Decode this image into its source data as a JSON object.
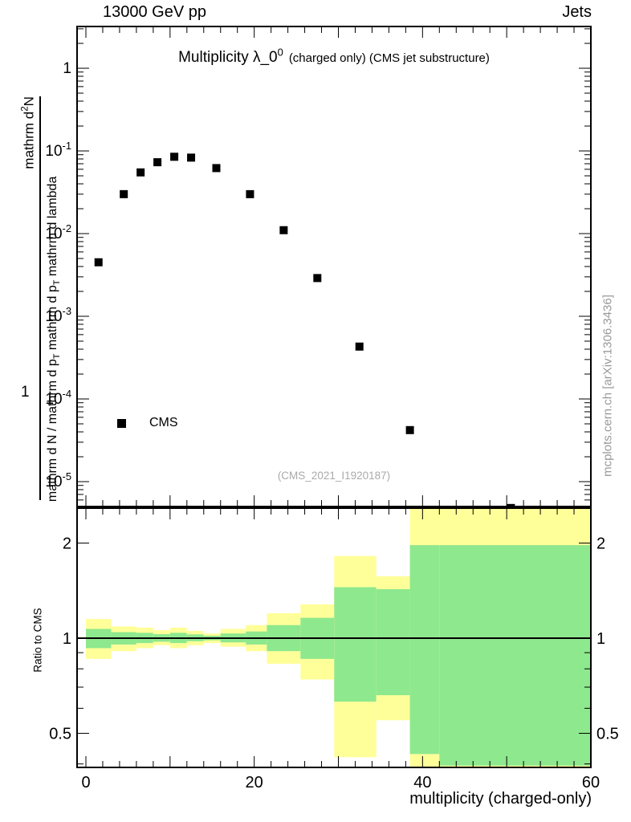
{
  "header": {
    "left": "13000 GeV pp",
    "right": "Jets"
  },
  "title": {
    "main": "Multiplicity λ_0^{0}",
    "suffix": "(charged only) (CMS jet substructure)"
  },
  "watermark": "(CMS_2021_I1920187)",
  "side_note": "mcplots.cern.ch [arXiv:1306.3436]",
  "xlabel": "multiplicity (charged-only)",
  "ylabel": {
    "numerator": "mathrm d^{2}N",
    "fraction_prefix": "1",
    "denominator": "mathrm d N / mathrm d p_{T} mathrm d p_{T} mathrm d lambda"
  },
  "ratio_ylabel": "Ratio to CMS",
  "legend": {
    "items": [
      {
        "label": "CMS",
        "marker": "black-filled-square"
      }
    ]
  },
  "chart_data": [
    {
      "type": "scatter",
      "panel": "main",
      "title": "Multiplicity λ_0^0 (charged only) (CMS jet substructure)",
      "x_range": [
        -1.05,
        60
      ],
      "y_scale": "log",
      "y_range": [
        5e-06,
        3.2
      ],
      "x_major_ticks": [
        0,
        20,
        40,
        60
      ],
      "x_major_tick_labels": [
        "0",
        "20",
        "40",
        "60"
      ],
      "x_minor_step": 2,
      "x_mid_step": 10,
      "y_tick_values": [
        1,
        0.1,
        0.01,
        0.001,
        0.0001,
        1e-05
      ],
      "y_tick_labels": [
        "1",
        "10^{-1}",
        "10^{-2}",
        "10^{-3}",
        "10^{-4}",
        "10^{-5}"
      ],
      "series": [
        {
          "name": "CMS",
          "marker": "filled-square",
          "color": "#000000",
          "x": [
            1.5,
            4.5,
            6.5,
            8.5,
            10.5,
            12.5,
            15.5,
            19.5,
            23.5,
            27.5,
            32.5,
            38.5,
            50.5
          ],
          "y": [
            0.0045,
            0.03,
            0.055,
            0.073,
            0.085,
            0.083,
            0.062,
            0.03,
            0.011,
            0.0029,
            0.00043,
            4.2e-05,
            4.8e-06
          ]
        }
      ]
    },
    {
      "type": "ratio-bands",
      "panel": "ratio",
      "ylabel": "Ratio to CMS",
      "y_scale": "log",
      "y_range": [
        0.39,
        2.58
      ],
      "y_tick_values": [
        2,
        1,
        0.5
      ],
      "y_tick_labels": [
        "2",
        "1",
        "0.5"
      ],
      "y_minor_ticks": [
        0.4,
        0.6,
        0.7,
        0.8,
        0.9
      ],
      "reference_line": 1.0,
      "band_colors": {
        "outer": "#ffff99",
        "inner": "#8ee88e"
      },
      "bands": [
        {
          "x0": 0,
          "x1": 3,
          "outer": [
            0.86,
            1.15
          ],
          "inner": [
            0.93,
            1.07
          ]
        },
        {
          "x0": 3,
          "x1": 6,
          "outer": [
            0.91,
            1.09
          ],
          "inner": [
            0.955,
            1.045
          ]
        },
        {
          "x0": 6,
          "x1": 8,
          "outer": [
            0.93,
            1.08
          ],
          "inner": [
            0.965,
            1.04
          ]
        },
        {
          "x0": 8,
          "x1": 10,
          "outer": [
            0.95,
            1.06
          ],
          "inner": [
            0.975,
            1.03
          ]
        },
        {
          "x0": 10,
          "x1": 12,
          "outer": [
            0.93,
            1.08
          ],
          "inner": [
            0.965,
            1.04
          ]
        },
        {
          "x0": 12,
          "x1": 14,
          "outer": [
            0.95,
            1.055
          ],
          "inner": [
            0.978,
            1.028
          ]
        },
        {
          "x0": 14,
          "x1": 16,
          "outer": [
            0.965,
            1.035
          ],
          "inner": [
            0.985,
            1.018
          ]
        },
        {
          "x0": 16,
          "x1": 19,
          "outer": [
            0.94,
            1.07
          ],
          "inner": [
            0.97,
            1.035
          ]
        },
        {
          "x0": 19,
          "x1": 21.5,
          "outer": [
            0.91,
            1.1
          ],
          "inner": [
            0.955,
            1.05
          ]
        },
        {
          "x0": 21.5,
          "x1": 25.5,
          "outer": [
            0.83,
            1.2
          ],
          "inner": [
            0.91,
            1.1
          ]
        },
        {
          "x0": 25.5,
          "x1": 29.5,
          "outer": [
            0.74,
            1.28
          ],
          "inner": [
            0.86,
            1.16
          ]
        },
        {
          "x0": 29.5,
          "x1": 34.5,
          "outer": [
            0.42,
            1.82
          ],
          "inner": [
            0.63,
            1.45
          ]
        },
        {
          "x0": 34.5,
          "x1": 38.5,
          "outer": [
            0.55,
            1.57
          ],
          "inner": [
            0.66,
            1.43
          ]
        },
        {
          "x0": 38.5,
          "x1": 42,
          "outer": [
            0.385,
            2.6
          ],
          "inner": [
            0.43,
            1.97
          ]
        },
        {
          "x0": 42,
          "x1": 60,
          "outer": [
            0.385,
            2.6
          ],
          "inner": [
            0.395,
            1.97
          ]
        }
      ]
    }
  ]
}
